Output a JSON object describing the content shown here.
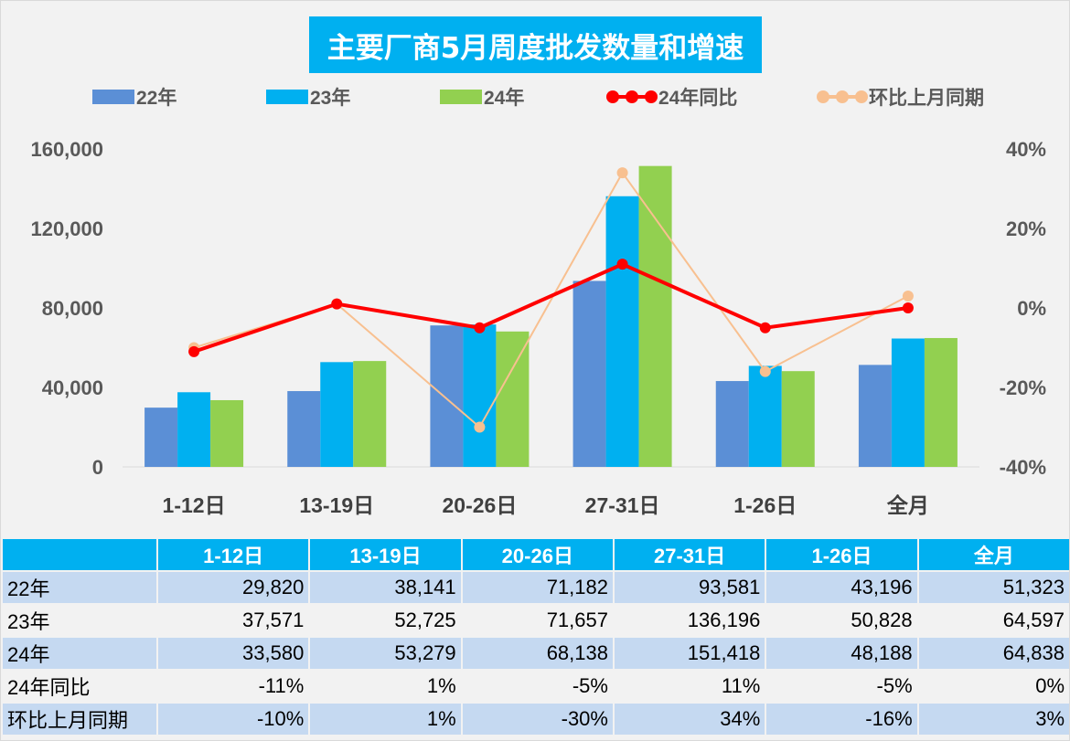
{
  "chart_data": {
    "type": "bar+line",
    "title": "主要厂商5月周度批发数量和增速",
    "categories": [
      "1-12日",
      "13-19日",
      "20-26日",
      "27-31日",
      "1-26日",
      "全月"
    ],
    "series": [
      {
        "name": "22年",
        "type": "bar",
        "axis": "left",
        "color": "#5b8fd6",
        "values": [
          29820,
          38141,
          71182,
          93581,
          43196,
          51323
        ]
      },
      {
        "name": "23年",
        "type": "bar",
        "axis": "left",
        "color": "#00b0f0",
        "values": [
          37571,
          52725,
          71657,
          136196,
          50828,
          64597
        ]
      },
      {
        "name": "24年",
        "type": "bar",
        "axis": "left",
        "color": "#92d050",
        "values": [
          33580,
          53279,
          68138,
          151418,
          48188,
          64838
        ]
      },
      {
        "name": "24年同比",
        "type": "line",
        "axis": "right",
        "color": "#ff0000",
        "values": [
          -11,
          1,
          -5,
          11,
          -5,
          0
        ]
      },
      {
        "name": "环比上月同期",
        "type": "line",
        "axis": "right",
        "color": "#f8c090",
        "values": [
          -10,
          1,
          -30,
          34,
          -16,
          3
        ]
      }
    ],
    "left_axis": {
      "range": [
        0,
        160000
      ],
      "ticks": [
        "0",
        "40,000",
        "80,000",
        "120,000",
        "160,000"
      ]
    },
    "right_axis": {
      "range": [
        -40,
        40
      ],
      "unit": "%",
      "ticks": [
        "-40%",
        "-20%",
        "0%",
        "20%",
        "40%"
      ]
    },
    "legend": "top",
    "grid": false
  },
  "table": {
    "header": [
      "",
      "1-12日",
      "13-19日",
      "20-26日",
      "27-31日",
      "1-26日",
      "全月"
    ],
    "rows": [
      {
        "label": "22年",
        "cells": [
          "29,820",
          "38,141",
          "71,182",
          "93,581",
          "43,196",
          "51,323"
        ]
      },
      {
        "label": "23年",
        "cells": [
          "37,571",
          "52,725",
          "71,657",
          "136,196",
          "50,828",
          "64,597"
        ]
      },
      {
        "label": "24年",
        "cells": [
          "33,580",
          "53,279",
          "68,138",
          "151,418",
          "48,188",
          "64,838"
        ]
      },
      {
        "label": "24年同比",
        "cells": [
          "-11%",
          "1%",
          "-5%",
          "11%",
          "-5%",
          "0%"
        ]
      },
      {
        "label": "环比上月同期",
        "cells": [
          "-10%",
          "1%",
          "-30%",
          "34%",
          "-16%",
          "3%"
        ]
      }
    ]
  }
}
